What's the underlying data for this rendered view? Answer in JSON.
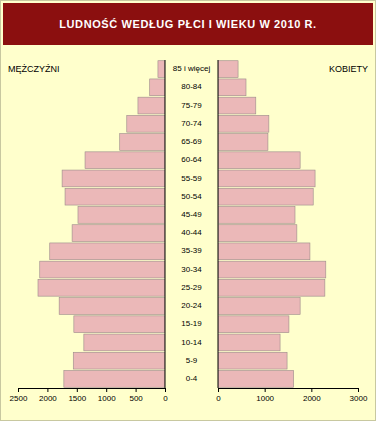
{
  "chart_data": [
    {
      "type": "bar",
      "orientation": "horizontal",
      "title": "LUDNOŚĆ WEDŁUG PŁCI I WIEKU W 2010 R.",
      "categories": [
        "0-4",
        "5-9",
        "10-14",
        "15-19",
        "20-24",
        "25-29",
        "30-34",
        "35-39",
        "40-44",
        "45-49",
        "50-54",
        "55-59",
        "60-64",
        "65-69",
        "70-74",
        "75-79",
        "80-84",
        "85 i więcej"
      ],
      "series": [
        {
          "name": "MĘŻCZYŹNI",
          "color": "#ebb8b8",
          "values": [
            1720,
            1560,
            1380,
            1550,
            1800,
            2160,
            2130,
            1960,
            1580,
            1480,
            1700,
            1750,
            1360,
            770,
            650,
            460,
            260,
            120
          ]
        }
      ],
      "xlim": [
        0,
        2500
      ],
      "xticks": [
        2500,
        2000,
        1500,
        1000,
        500,
        0
      ],
      "grid": false
    },
    {
      "type": "bar",
      "orientation": "horizontal",
      "categories": [
        "0-4",
        "5-9",
        "10-14",
        "15-19",
        "20-24",
        "25-29",
        "30-34",
        "35-39",
        "40-44",
        "45-49",
        "50-54",
        "55-59",
        "60-64",
        "65-69",
        "70-74",
        "75-79",
        "80-84",
        "85 i więcej"
      ],
      "series": [
        {
          "name": "KOBIETY",
          "color": "#ebb8b8",
          "values": [
            1620,
            1480,
            1330,
            1520,
            1760,
            2290,
            2310,
            1970,
            1690,
            1650,
            2040,
            2080,
            1760,
            1070,
            1090,
            810,
            600,
            430
          ]
        }
      ],
      "xlim": [
        0,
        3000
      ],
      "xticks": [
        0,
        1000,
        2000,
        3000
      ],
      "grid": false
    }
  ]
}
